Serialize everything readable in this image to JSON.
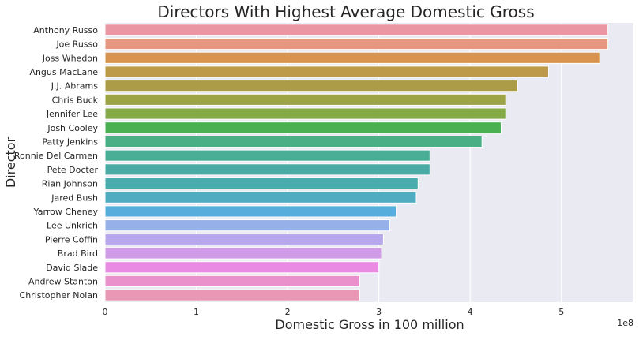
{
  "chart_data": {
    "type": "bar",
    "orientation": "horizontal",
    "title": "Directors With Highest Average Domestic Gross",
    "xlabel": "Domestic Gross in 100 million",
    "ylabel": "Director",
    "x_offset_label": "1e8",
    "xlim": [
      0,
      5.79
    ],
    "xticks": [
      0,
      1,
      2,
      3,
      4,
      5
    ],
    "grid": true,
    "background": "#eaeaf2",
    "categories": [
      "Anthony Russo",
      "Joe Russo",
      "Joss Whedon",
      "Angus MacLane",
      "J.J. Abrams",
      "Chris Buck",
      "Jennifer Lee",
      "Josh Cooley",
      "Patty Jenkins",
      "Ronnie Del Carmen",
      "Pete Docter",
      "Rian Johnson",
      "Jared Bush",
      "Yarrow Cheney",
      "Lee Unkrich",
      "Pierre Coffin",
      "Brad Bird",
      "David Slade",
      "Andrew Stanton",
      "Christopher Nolan"
    ],
    "values": [
      5.51,
      5.51,
      5.42,
      4.86,
      4.52,
      4.39,
      4.39,
      4.34,
      4.13,
      3.56,
      3.56,
      3.43,
      3.41,
      3.19,
      3.12,
      3.05,
      3.03,
      3.0,
      2.79,
      2.79
    ],
    "colors": [
      "#ea96a3",
      "#e8977f",
      "#d8944f",
      "#bd9a4a",
      "#ac9c47",
      "#9ca446",
      "#84a947",
      "#4bb052",
      "#4aaf84",
      "#4aae96",
      "#49aba4",
      "#4bacad",
      "#50adc1",
      "#57aedd",
      "#96b0ea",
      "#b7a7ec",
      "#d19ce7",
      "#e98be2",
      "#ea91cc",
      "#ea97b5"
    ]
  }
}
